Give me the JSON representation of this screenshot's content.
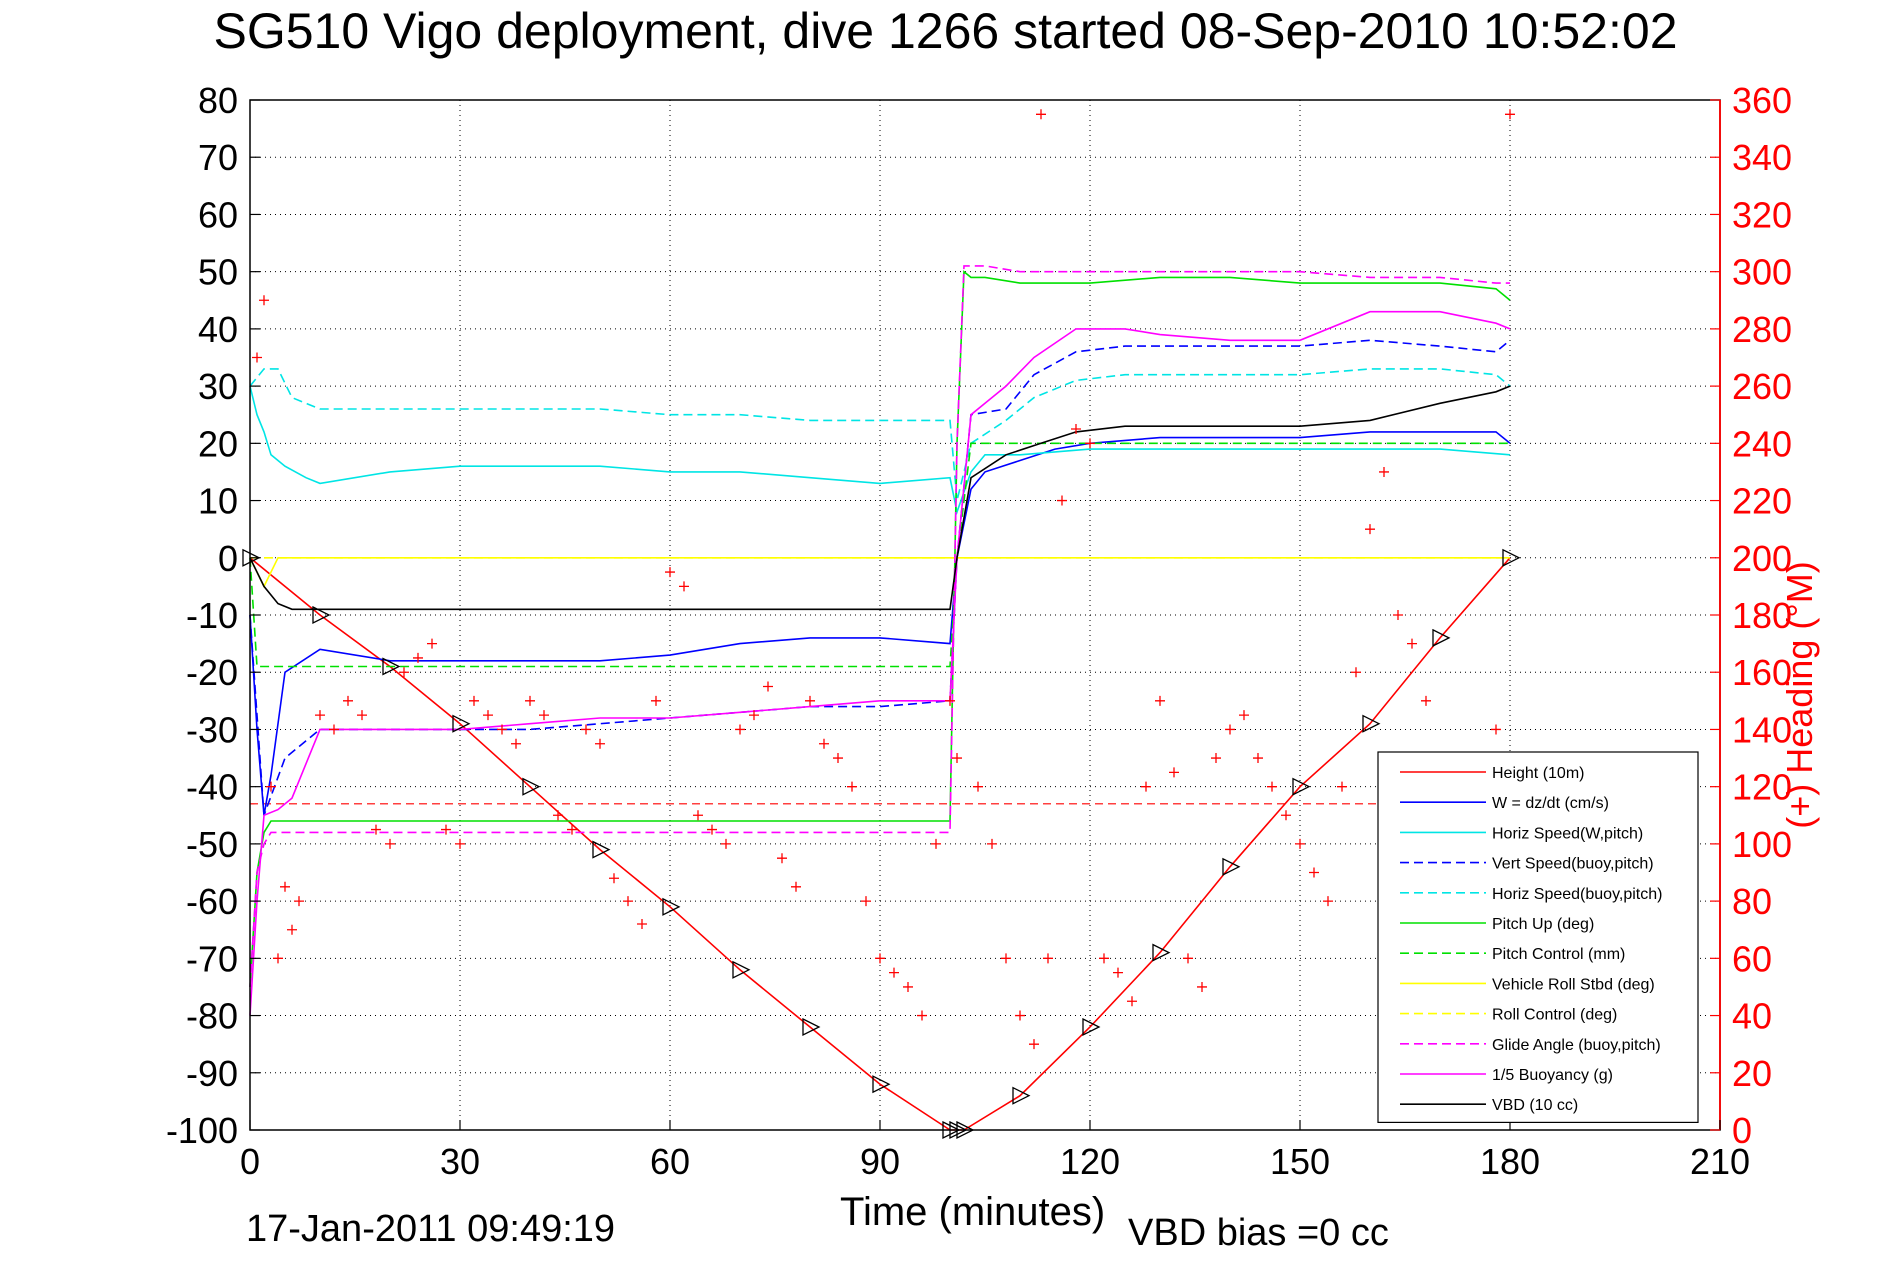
{
  "header": {
    "title": "SG510 Vigo deployment, dive 1266 started 08-Sep-2010 10:52:02"
  },
  "footer": {
    "timestamp": "17-Jan-2011 09:49:19",
    "vbd_bias": "VBD bias =0 cc"
  },
  "chart_data": {
    "type": "line",
    "title": "SG510 Vigo deployment, dive 1266 started 08-Sep-2010 10:52:02",
    "xlabel": "Time (minutes)",
    "ylabel": "",
    "y2label": "(+) Heading (°M)",
    "xlim": [
      0,
      210
    ],
    "ylim": [
      -100,
      80
    ],
    "y2lim": [
      0,
      360
    ],
    "x_ticks": [
      "0",
      "30",
      "60",
      "90",
      "120",
      "150",
      "180",
      "210"
    ],
    "y_ticks": [
      "80",
      "70",
      "60",
      "50",
      "40",
      "30",
      "20",
      "10",
      "0",
      "-10",
      "-20",
      "-30",
      "-40",
      "-50",
      "-60",
      "-70",
      "-80",
      "-90",
      "-100"
    ],
    "y2_ticks": [
      "360",
      "340",
      "320",
      "300",
      "280",
      "260",
      "240",
      "220",
      "200",
      "180",
      "160",
      "140",
      "120",
      "100",
      "80",
      "60",
      "40",
      "20",
      "0"
    ],
    "grid": true,
    "legend_position": "bottom-right",
    "series": [
      {
        "name": "Height (10m)",
        "color": "#ff0000",
        "style": "solid",
        "x": [
          0,
          10,
          20,
          30,
          40,
          50,
          60,
          70,
          80,
          90,
          100,
          101,
          102,
          110,
          120,
          130,
          140,
          150,
          160,
          170,
          180
        ],
        "y": [
          0,
          -10,
          -19,
          -29,
          -40,
          -51,
          -61,
          -72,
          -82,
          -92,
          -100,
          -100,
          -100,
          -94,
          -82,
          -69,
          -54,
          -40,
          -29,
          -14,
          0
        ]
      },
      {
        "name": "W = dz/dt (cm/s)",
        "color": "#0000ff",
        "style": "solid",
        "x": [
          0,
          1,
          2,
          3,
          5,
          10,
          20,
          30,
          40,
          50,
          60,
          70,
          80,
          90,
          100,
          101,
          103,
          105,
          110,
          115,
          120,
          130,
          140,
          150,
          160,
          170,
          178,
          180
        ],
        "y": [
          -10,
          -30,
          -45,
          -38,
          -20,
          -16,
          -18,
          -18,
          -18,
          -18,
          -17,
          -15,
          -14,
          -14,
          -15,
          0,
          12,
          15,
          17,
          19,
          20,
          21,
          21,
          21,
          22,
          22,
          22,
          20
        ]
      },
      {
        "name": "Horiz Speed(W,pitch)",
        "color": "#00e5e5",
        "style": "solid",
        "x": [
          0,
          1,
          2,
          3,
          5,
          8,
          10,
          20,
          30,
          40,
          50,
          60,
          70,
          80,
          90,
          100,
          101,
          103,
          105,
          110,
          120,
          130,
          140,
          150,
          160,
          170,
          180
        ],
        "y": [
          30,
          25,
          22,
          18,
          16,
          14,
          13,
          15,
          16,
          16,
          16,
          15,
          15,
          14,
          13,
          14,
          8,
          15,
          18,
          18,
          19,
          19,
          19,
          19,
          19,
          19,
          18
        ]
      },
      {
        "name": "Vert Speed(buoy,pitch)",
        "color": "#0000ff",
        "style": "dashed",
        "x": [
          0,
          2,
          5,
          10,
          20,
          30,
          40,
          50,
          60,
          70,
          80,
          90,
          100,
          101,
          103,
          108,
          112,
          118,
          125,
          130,
          140,
          150,
          160,
          170,
          178,
          180
        ],
        "y": [
          -10,
          -45,
          -35,
          -30,
          -30,
          -30,
          -30,
          -29,
          -28,
          -27,
          -26,
          -26,
          -25,
          0,
          25,
          26,
          32,
          36,
          37,
          37,
          37,
          37,
          38,
          37,
          36,
          38
        ]
      },
      {
        "name": "Horiz Speed(buoy,pitch)",
        "color": "#00e5e5",
        "style": "dashed",
        "x": [
          0,
          2,
          4,
          6,
          10,
          20,
          30,
          40,
          50,
          60,
          70,
          80,
          90,
          100,
          101,
          103,
          108,
          112,
          118,
          125,
          130,
          140,
          150,
          160,
          170,
          178,
          180
        ],
        "y": [
          30,
          33,
          33,
          28,
          26,
          26,
          26,
          26,
          26,
          25,
          25,
          24,
          24,
          24,
          10,
          20,
          24,
          28,
          31,
          32,
          32,
          32,
          32,
          33,
          33,
          32,
          30
        ]
      },
      {
        "name": "Pitch Up (deg)",
        "color": "#00e000",
        "style": "solid",
        "x": [
          0,
          1,
          2,
          3,
          5,
          10,
          20,
          30,
          40,
          50,
          60,
          70,
          80,
          90,
          100,
          101,
          102,
          103,
          105,
          110,
          120,
          130,
          140,
          150,
          160,
          170,
          178,
          180
        ],
        "y": [
          -75,
          -55,
          -48,
          -46,
          -46,
          -46,
          -46,
          -46,
          -46,
          -46,
          -46,
          -46,
          -46,
          -46,
          -46,
          20,
          50,
          49,
          49,
          48,
          48,
          49,
          49,
          48,
          48,
          48,
          47,
          45
        ]
      },
      {
        "name": "Pitch Control (mm)",
        "color": "#00e000",
        "style": "dashed",
        "x": [
          0,
          1,
          3,
          5,
          10,
          20,
          30,
          40,
          50,
          60,
          70,
          80,
          90,
          100,
          101,
          103,
          110,
          120,
          130,
          140,
          150,
          160,
          170,
          180
        ],
        "y": [
          0,
          -19,
          -19,
          -19,
          -19,
          -19,
          -19,
          -19,
          -19,
          -19,
          -19,
          -19,
          -19,
          -19,
          0,
          20,
          20,
          20,
          20,
          20,
          20,
          20,
          20,
          20
        ]
      },
      {
        "name": "Vehicle Roll Stbd (deg)",
        "color": "#ffff00",
        "style": "solid",
        "x": [
          0,
          2,
          4,
          6,
          8,
          10,
          20,
          30,
          40,
          50,
          60,
          70,
          80,
          90,
          100,
          101,
          103,
          110,
          120,
          130,
          140,
          150,
          160,
          170,
          180
        ],
        "y": [
          0,
          -5,
          0,
          0,
          0,
          0,
          0,
          0,
          0,
          0,
          0,
          0,
          0,
          0,
          0,
          0,
          0,
          0,
          0,
          0,
          0,
          0,
          0,
          0,
          0
        ]
      },
      {
        "name": "Roll Control (deg)",
        "color": "#ffff00",
        "style": "dashed",
        "x": [
          0,
          10,
          20,
          30,
          40,
          50,
          60,
          70,
          80,
          90,
          100,
          110,
          120,
          130,
          140,
          150,
          160,
          170,
          180
        ],
        "y": [
          0,
          0,
          0,
          0,
          0,
          0,
          0,
          0,
          0,
          0,
          0,
          0,
          0,
          0,
          0,
          0,
          0,
          0,
          0
        ]
      },
      {
        "name": "Glide Angle (buoy,pitch)",
        "color": "#ff00ff",
        "style": "dashed",
        "x": [
          0,
          1,
          2,
          3,
          5,
          10,
          20,
          30,
          40,
          50,
          60,
          70,
          80,
          90,
          100,
          101,
          102,
          103,
          105,
          110,
          120,
          130,
          140,
          150,
          160,
          170,
          178,
          180
        ],
        "y": [
          -75,
          -55,
          -50,
          -48,
          -48,
          -48,
          -48,
          -48,
          -48,
          -48,
          -48,
          -48,
          -48,
          -48,
          -48,
          20,
          51,
          51,
          51,
          50,
          50,
          50,
          50,
          50,
          49,
          49,
          48,
          48
        ]
      },
      {
        "name": "1/5 Buoyancy (g)",
        "color": "#ff00ff",
        "style": "solid",
        "x": [
          0,
          1,
          2,
          4,
          6,
          10,
          20,
          30,
          40,
          50,
          60,
          70,
          80,
          90,
          100,
          101,
          103,
          105,
          108,
          112,
          118,
          125,
          130,
          140,
          150,
          160,
          170,
          178,
          180
        ],
        "y": [
          -80,
          -60,
          -45,
          -44,
          -42,
          -30,
          -30,
          -30,
          -29,
          -28,
          -28,
          -27,
          -26,
          -25,
          -25,
          0,
          25,
          27,
          30,
          35,
          40,
          40,
          39,
          38,
          38,
          43,
          43,
          41,
          40
        ]
      },
      {
        "name": "VBD (10 cc)",
        "color": "#000000",
        "style": "solid",
        "x": [
          0,
          2,
          4,
          6,
          10,
          20,
          30,
          40,
          50,
          60,
          70,
          80,
          90,
          100,
          101,
          103,
          108,
          113,
          118,
          125,
          130,
          140,
          150,
          160,
          170,
          178,
          180
        ],
        "y": [
          0,
          -5,
          -8,
          -9,
          -9,
          -9,
          -9,
          -9,
          -9,
          -9,
          -9,
          -9,
          -9,
          -9,
          0,
          14,
          18,
          20,
          22,
          23,
          23,
          23,
          23,
          24,
          27,
          29,
          30
        ]
      }
    ],
    "heading_points_deg": [
      [
        1,
        270
      ],
      [
        2,
        290
      ],
      [
        3,
        120
      ],
      [
        4,
        60
      ],
      [
        5,
        85
      ],
      [
        6,
        70
      ],
      [
        7,
        80
      ],
      [
        10,
        145
      ],
      [
        12,
        140
      ],
      [
        14,
        150
      ],
      [
        16,
        145
      ],
      [
        18,
        105
      ],
      [
        20,
        100
      ],
      [
        22,
        160
      ],
      [
        24,
        165
      ],
      [
        26,
        170
      ],
      [
        28,
        105
      ],
      [
        30,
        100
      ],
      [
        32,
        150
      ],
      [
        34,
        145
      ],
      [
        36,
        140
      ],
      [
        38,
        135
      ],
      [
        40,
        150
      ],
      [
        42,
        145
      ],
      [
        44,
        110
      ],
      [
        46,
        105
      ],
      [
        48,
        140
      ],
      [
        50,
        135
      ],
      [
        52,
        88
      ],
      [
        54,
        80
      ],
      [
        56,
        72
      ],
      [
        58,
        150
      ],
      [
        60,
        195
      ],
      [
        62,
        190
      ],
      [
        64,
        110
      ],
      [
        66,
        105
      ],
      [
        68,
        100
      ],
      [
        70,
        140
      ],
      [
        72,
        145
      ],
      [
        74,
        155
      ],
      [
        76,
        95
      ],
      [
        78,
        85
      ],
      [
        80,
        150
      ],
      [
        82,
        135
      ],
      [
        84,
        130
      ],
      [
        86,
        120
      ],
      [
        88,
        80
      ],
      [
        90,
        60
      ],
      [
        92,
        55
      ],
      [
        94,
        50
      ],
      [
        96,
        40
      ],
      [
        98,
        100
      ],
      [
        100,
        150
      ],
      [
        101,
        130
      ],
      [
        104,
        120
      ],
      [
        106,
        100
      ],
      [
        108,
        60
      ],
      [
        110,
        40
      ],
      [
        112,
        30
      ],
      [
        113,
        355
      ],
      [
        114,
        60
      ],
      [
        116,
        220
      ],
      [
        118,
        245
      ],
      [
        120,
        240
      ],
      [
        122,
        60
      ],
      [
        124,
        55
      ],
      [
        126,
        45
      ],
      [
        128,
        120
      ],
      [
        130,
        150
      ],
      [
        132,
        125
      ],
      [
        134,
        60
      ],
      [
        136,
        50
      ],
      [
        138,
        130
      ],
      [
        140,
        140
      ],
      [
        142,
        145
      ],
      [
        144,
        130
      ],
      [
        146,
        120
      ],
      [
        148,
        110
      ],
      [
        150,
        100
      ],
      [
        152,
        90
      ],
      [
        154,
        80
      ],
      [
        156,
        120
      ],
      [
        158,
        160
      ],
      [
        160,
        210
      ],
      [
        162,
        230
      ],
      [
        164,
        180
      ],
      [
        166,
        170
      ],
      [
        168,
        150
      ],
      [
        170,
        120
      ],
      [
        172,
        100
      ],
      [
        174,
        90
      ],
      [
        176,
        85
      ],
      [
        178,
        140
      ],
      [
        180,
        355
      ]
    ],
    "reference_line_y": -43
  }
}
